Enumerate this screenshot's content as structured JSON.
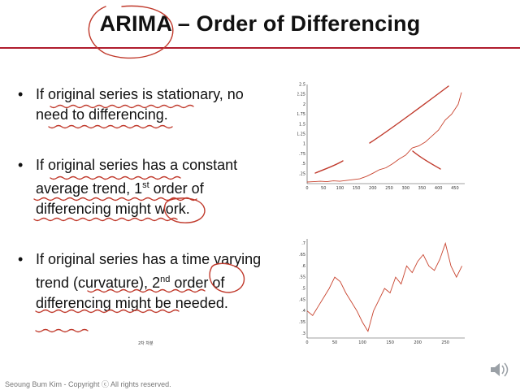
{
  "title": "ARIMA – Order of Differencing",
  "bullets": [
    {
      "pre": "If original series is stationary, no need to differencing.",
      "num": "",
      "sup": "",
      "post": ""
    },
    {
      "pre": "If original series has a constant average trend, ",
      "num": "1",
      "sup": "st",
      "post": " order of differencing might work."
    },
    {
      "pre": "If original series has a time varying trend (curvature), ",
      "num": "2",
      "sup": "nd",
      "post": " order of differencing might be needed."
    }
  ],
  "annotation_text": "2차 차분",
  "footer": "Seoung Bum Kim - Copyright ⓒ All rights reserved.",
  "chart_top": {
    "type": "line",
    "ylim": [
      0,
      2.5
    ],
    "xlim": [
      0,
      480
    ],
    "yticks": [
      ".25",
      ".5",
      ".75",
      "1",
      "1.25",
      "1.5",
      "1.75",
      "2",
      "2.25",
      "2.5"
    ],
    "xticks": [
      "0",
      "50",
      "100",
      "150",
      "200",
      "250",
      "300",
      "350",
      "400",
      "450"
    ],
    "x": [
      0,
      20,
      40,
      60,
      80,
      100,
      120,
      140,
      160,
      180,
      200,
      220,
      240,
      260,
      280,
      300,
      320,
      340,
      360,
      380,
      400,
      420,
      440,
      460,
      470
    ],
    "y": [
      0.04,
      0.05,
      0.06,
      0.05,
      0.07,
      0.06,
      0.08,
      0.1,
      0.12,
      0.18,
      0.26,
      0.35,
      0.4,
      0.5,
      0.62,
      0.72,
      0.9,
      0.95,
      1.05,
      1.2,
      1.35,
      1.6,
      1.75,
      2.0,
      2.3
    ]
  },
  "chart_bottom": {
    "type": "line",
    "ylim": [
      0.28,
      0.72
    ],
    "xlim": [
      0,
      285
    ],
    "yticks": [
      ".3",
      ".35",
      ".4",
      ".45",
      ".5",
      ".55",
      ".6",
      ".65",
      ".7"
    ],
    "xticks": [
      "0",
      "50",
      "100",
      "150",
      "200",
      "250"
    ],
    "x": [
      0,
      10,
      20,
      30,
      40,
      50,
      60,
      70,
      80,
      90,
      100,
      110,
      120,
      130,
      140,
      150,
      160,
      170,
      180,
      190,
      200,
      210,
      220,
      230,
      240,
      250,
      260,
      270,
      280
    ],
    "y": [
      0.4,
      0.38,
      0.42,
      0.46,
      0.5,
      0.55,
      0.53,
      0.48,
      0.44,
      0.4,
      0.35,
      0.31,
      0.4,
      0.45,
      0.5,
      0.48,
      0.55,
      0.52,
      0.6,
      0.57,
      0.62,
      0.65,
      0.6,
      0.58,
      0.63,
      0.7,
      0.6,
      0.55,
      0.6
    ]
  },
  "colors": {
    "rule": "#b01c2e",
    "ink": "#c0392b",
    "series": "#c8432e"
  }
}
